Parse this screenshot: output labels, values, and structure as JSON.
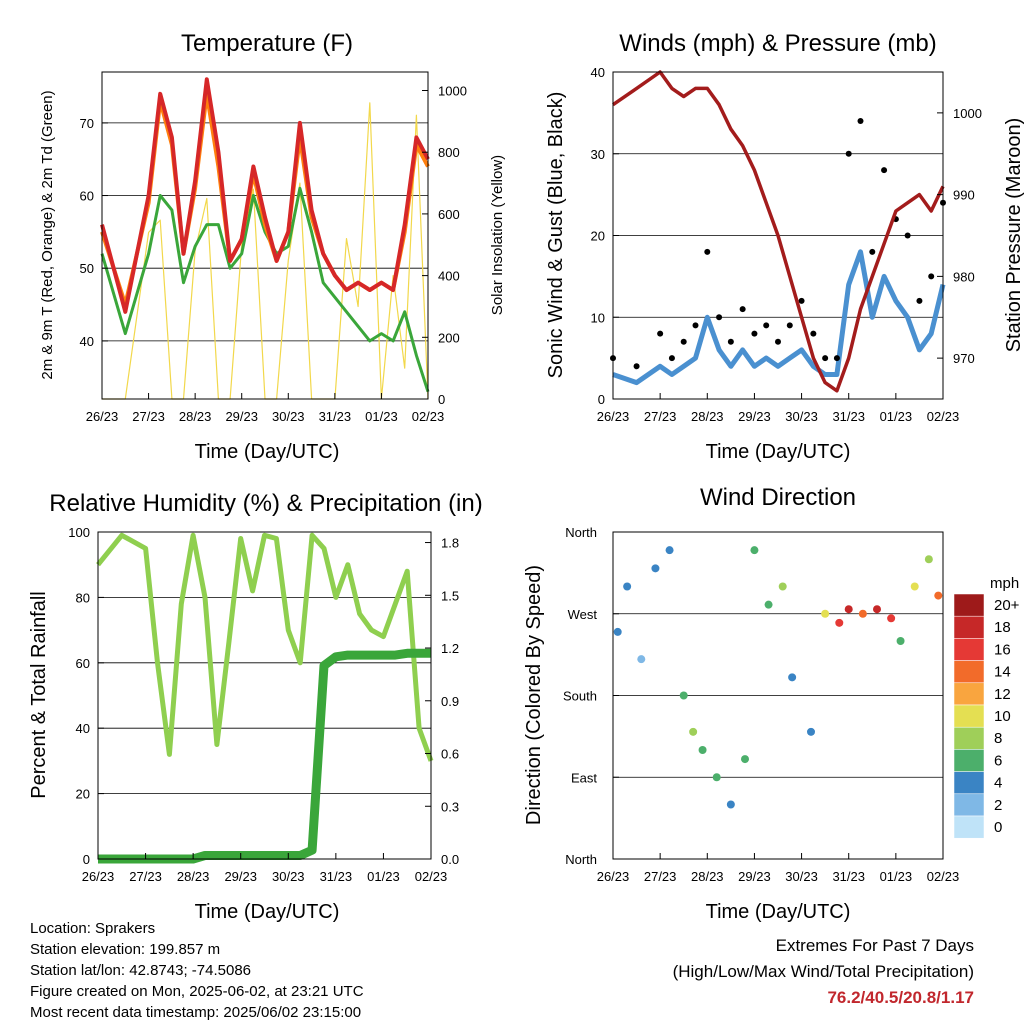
{
  "day_ticks": [
    "26/23",
    "27/23",
    "28/23",
    "29/23",
    "30/23",
    "31/23",
    "01/23",
    "02/23"
  ],
  "panels": {
    "temperature": {
      "title": "Temperature (F)",
      "ylabel": "2m & 9m T (Red, Orange) & 2m Td (Green)",
      "y2label": "Solar Insolation (Yellow)",
      "xlabel": "Time (Day/UTC)",
      "yticks": [
        "40",
        "50",
        "60",
        "70"
      ],
      "y2ticks": [
        "0",
        "200",
        "400",
        "600",
        "800",
        "1000"
      ]
    },
    "winds": {
      "title": "Winds (mph) & Pressure (mb)",
      "ylabel": "Sonic Wind & Gust (Blue, Black)",
      "y2label": "Station Pressure (Maroon)",
      "xlabel": "Time (Day/UTC)",
      "yticks": [
        "0",
        "10",
        "20",
        "30",
        "40"
      ],
      "y2ticks": [
        "970",
        "980",
        "990",
        "1000"
      ]
    },
    "humidity": {
      "title": "Relative Humidity (%) & Precipitation (in)",
      "ylabel": "Percent & Total Rainfall",
      "xlabel": "Time (Day/UTC)",
      "yticks": [
        "0",
        "20",
        "40",
        "60",
        "80",
        "100"
      ],
      "y2ticks": [
        "0.0",
        "0.3",
        "0.6",
        "0.9",
        "1.2",
        "1.5",
        "1.8"
      ]
    },
    "direction": {
      "title": "Wind Direction",
      "ylabel": "Direction (Colored By Speed)",
      "xlabel": "Time (Day/UTC)",
      "yticks": [
        "North",
        "East",
        "South",
        "West",
        "North"
      ],
      "legend_title": "mph",
      "legend_labels": [
        "20+",
        "18",
        "16",
        "14",
        "12",
        "10",
        "8",
        "6",
        "4",
        "2",
        "0"
      ],
      "legend_colors": [
        "#9e1a1a",
        "#c62828",
        "#e53935",
        "#f26b2a",
        "#f9a53f",
        "#e4df52",
        "#9fcf59",
        "#4caf6b",
        "#3a84c4",
        "#7fb8e6",
        "#bfe3f8"
      ]
    }
  },
  "chart_data": [
    {
      "type": "line",
      "title": "Temperature (F)",
      "xlabel": "Time (Day/UTC)",
      "ylabel": "2m & 9m T (Red, Orange) & 2m Td (Green)",
      "y2label": "Solar Insolation (Yellow)",
      "x": [
        26,
        26.5,
        27,
        27.25,
        27.5,
        27.75,
        28,
        28.25,
        28.5,
        28.75,
        29,
        29.25,
        29.5,
        29.75,
        30,
        30.25,
        30.5,
        30.75,
        31,
        31.25,
        31.5,
        31.75,
        32,
        32.25,
        32.5,
        32.75,
        33
      ],
      "ylim": [
        32,
        77
      ],
      "y2lim": [
        0,
        1060
      ],
      "series": [
        {
          "name": "2m T",
          "color": "#d62728",
          "values": [
            56,
            44,
            60,
            74,
            68,
            52,
            62,
            76,
            66,
            51,
            54,
            64,
            57,
            51,
            55,
            70,
            58,
            52,
            49,
            47,
            48,
            47,
            48,
            47,
            56,
            68,
            65
          ]
        },
        {
          "name": "9m T",
          "color": "#ff7f0e",
          "values": [
            55,
            45,
            59,
            73,
            67,
            52,
            61,
            74,
            64,
            51,
            54,
            63,
            56,
            51,
            55,
            68,
            57,
            52,
            49,
            47,
            48,
            47,
            48,
            47,
            55,
            67,
            64
          ]
        },
        {
          "name": "2m Td",
          "color": "#3aa63a",
          "values": [
            52,
            41,
            52,
            60,
            58,
            48,
            53,
            56,
            56,
            50,
            52,
            60,
            55,
            52,
            53,
            61,
            55,
            48,
            46,
            44,
            42,
            40,
            41,
            40,
            44,
            38,
            33
          ]
        },
        {
          "name": "Solar Insolation",
          "color": "#f2d84b",
          "axis": "y2",
          "values": [
            0,
            0,
            540,
            580,
            0,
            0,
            480,
            650,
            0,
            0,
            500,
            680,
            0,
            0,
            450,
            700,
            0,
            0,
            0,
            520,
            300,
            960,
            0,
            400,
            100,
            920,
            0
          ]
        }
      ]
    },
    {
      "type": "line",
      "title": "Winds (mph) & Pressure (mb)",
      "xlabel": "Time (Day/UTC)",
      "ylabel": "Sonic Wind & Gust (Blue, Black)",
      "y2label": "Station Pressure (Maroon)",
      "x": [
        26,
        26.5,
        27,
        27.25,
        27.5,
        27.75,
        28,
        28.25,
        28.5,
        28.75,
        29,
        29.25,
        29.5,
        29.75,
        30,
        30.25,
        30.5,
        30.75,
        31,
        31.25,
        31.5,
        31.75,
        32,
        32.25,
        32.5,
        32.75,
        33
      ],
      "ylim": [
        0,
        40
      ],
      "y2lim": [
        965,
        1005
      ],
      "series": [
        {
          "name": "Sonic Wind",
          "color": "#4a90d0",
          "values": [
            3,
            2,
            4,
            3,
            4,
            5,
            10,
            6,
            4,
            6,
            4,
            5,
            4,
            5,
            6,
            4,
            3,
            3,
            14,
            18,
            10,
            15,
            12,
            10,
            6,
            8,
            14
          ]
        },
        {
          "name": "Gust",
          "color": "#000000",
          "values": [
            5,
            4,
            8,
            5,
            7,
            9,
            18,
            10,
            7,
            11,
            8,
            9,
            7,
            9,
            12,
            8,
            5,
            5,
            30,
            34,
            18,
            28,
            22,
            20,
            12,
            15,
            24
          ]
        },
        {
          "name": "Station Pressure",
          "color": "#a31c1c",
          "axis": "y2",
          "values": [
            1001,
            1003,
            1005,
            1003,
            1002,
            1003,
            1003,
            1001,
            998,
            996,
            993,
            989,
            985,
            980,
            975,
            970,
            967,
            966,
            970,
            976,
            980,
            984,
            988,
            989,
            990,
            988,
            991
          ]
        }
      ]
    },
    {
      "type": "line",
      "title": "Relative Humidity (%) & Precipitation (in)",
      "xlabel": "Time (Day/UTC)",
      "ylabel": "Percent & Total Rainfall",
      "x": [
        26,
        26.5,
        27,
        27.25,
        27.5,
        27.75,
        28,
        28.25,
        28.5,
        28.75,
        29,
        29.25,
        29.5,
        29.75,
        30,
        30.25,
        30.5,
        30.75,
        31,
        31.25,
        31.5,
        31.75,
        32,
        32.25,
        32.5,
        32.75,
        33
      ],
      "ylim": [
        0,
        100
      ],
      "y2lim": [
        0,
        1.86
      ],
      "series": [
        {
          "name": "Relative Humidity",
          "color": "#8fcf4f",
          "values": [
            90,
            99,
            95,
            60,
            32,
            78,
            99,
            80,
            35,
            66,
            98,
            82,
            99,
            98,
            70,
            60,
            99,
            95,
            80,
            90,
            75,
            70,
            68,
            78,
            88,
            40,
            30
          ]
        },
        {
          "name": "Total Rainfall",
          "color": "#3aa63a",
          "axis": "y2",
          "values": [
            0,
            0,
            0,
            0,
            0,
            0,
            0,
            0.02,
            0.02,
            0.02,
            0.02,
            0.02,
            0.02,
            0.02,
            0.02,
            0.02,
            0.05,
            1.1,
            1.15,
            1.16,
            1.16,
            1.16,
            1.16,
            1.16,
            1.17,
            1.17,
            1.17
          ]
        }
      ]
    },
    {
      "type": "scatter",
      "title": "Wind Direction",
      "xlabel": "Time (Day/UTC)",
      "ylabel": "Direction (Colored By Speed)",
      "y_categories": [
        "North",
        "East",
        "South",
        "West",
        "North"
      ],
      "ylim": [
        0,
        360
      ],
      "x": [
        26.1,
        26.3,
        26.6,
        26.9,
        27.2,
        27.5,
        27.7,
        27.9,
        28.2,
        28.5,
        28.8,
        29.0,
        29.3,
        29.6,
        29.8,
        30.2,
        30.5,
        30.8,
        31.0,
        31.3,
        31.6,
        31.9,
        32.1,
        32.4,
        32.7,
        32.9
      ],
      "direction": [
        250,
        300,
        220,
        320,
        340,
        180,
        140,
        120,
        90,
        60,
        110,
        340,
        280,
        300,
        200,
        140,
        270,
        260,
        275,
        270,
        275,
        265,
        240,
        300,
        330,
        290
      ],
      "speed": [
        3,
        4,
        2,
        3,
        4,
        6,
        8,
        6,
        5,
        4,
        6,
        6,
        5,
        7,
        3,
        4,
        9,
        16,
        18,
        14,
        17,
        16,
        6,
        10,
        8,
        14
      ]
    }
  ],
  "info": {
    "location": "Location: Sprakers",
    "elevation": "Station elevation: 199.857 m",
    "latlon": "Station lat/lon: 42.8743; -74.5086",
    "created": "Figure created on Mon, 2025-06-02, at 23:21 UTC",
    "timestamp": "Most recent data timestamp: 2025/06/02 23:15:00"
  },
  "extremes": {
    "title": "Extremes For Past 7 Days",
    "subtitle": "(High/Low/Max Wind/Total Precipitation)",
    "values": "76.2/40.5/20.8/1.17"
  }
}
